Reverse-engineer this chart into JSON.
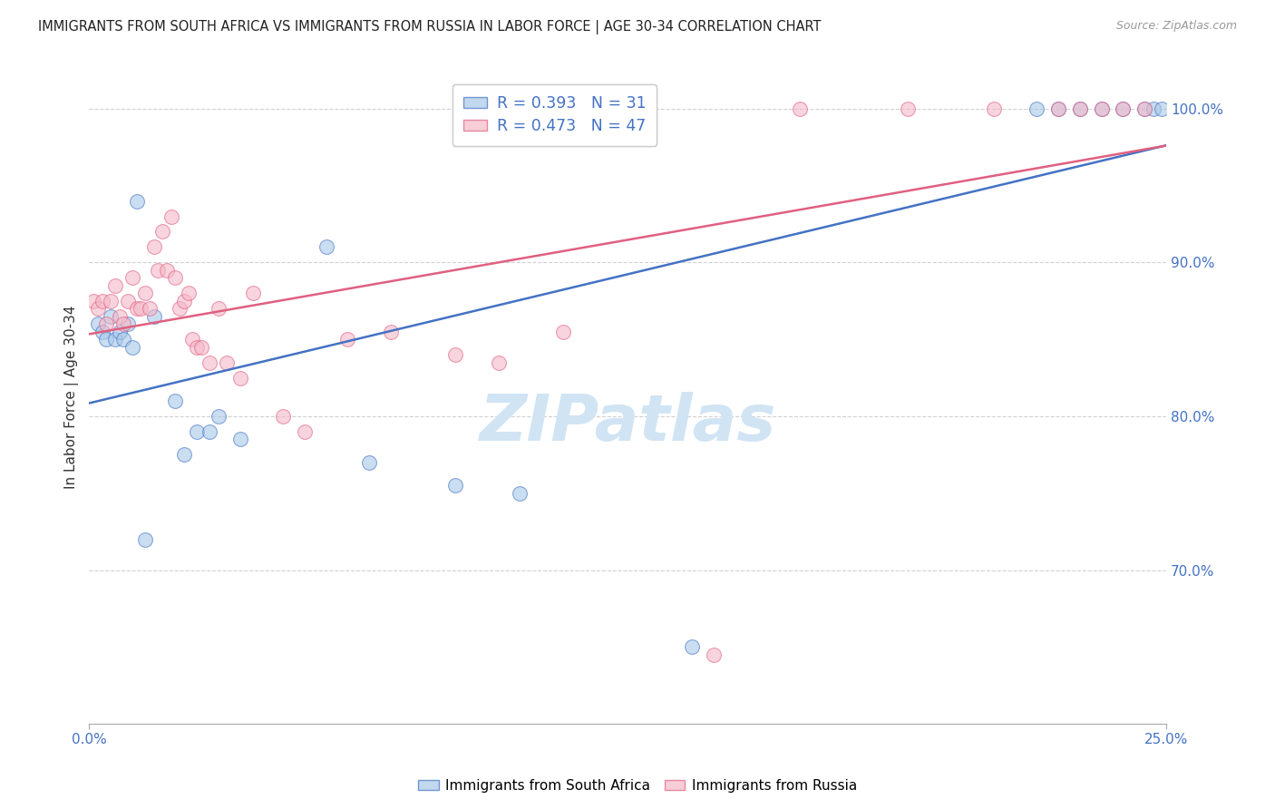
{
  "title": "IMMIGRANTS FROM SOUTH AFRICA VS IMMIGRANTS FROM RUSSIA IN LABOR FORCE | AGE 30-34 CORRELATION CHART",
  "source": "Source: ZipAtlas.com",
  "ylabel": "In Labor Force | Age 30-34",
  "blue_label": "Immigrants from South Africa",
  "pink_label": "Immigrants from Russia",
  "legend_blue_r": "R = 0.393",
  "legend_blue_n": "N = 31",
  "legend_pink_r": "R = 0.473",
  "legend_pink_n": "N = 47",
  "xmin": 0.0,
  "xmax": 25.0,
  "ymin": 60.0,
  "ymax": 102.5,
  "yticks": [
    70.0,
    80.0,
    90.0,
    100.0
  ],
  "ytick_labels": [
    "70.0%",
    "80.0%",
    "90.0%",
    "100.0%"
  ],
  "blue_color": "#a8c8e8",
  "pink_color": "#f4b8c8",
  "blue_edge_color": "#4472c4",
  "pink_edge_color": "#e06080",
  "line_color_blue": "#4472c4",
  "line_color_pink": "#e06080",
  "background_color": "#ffffff",
  "grid_color": "#cccccc",
  "axis_color": "#4472c4",
  "watermark_color": "#d0e4f4",
  "title_color": "#222222",
  "source_color": "#999999",
  "blue_scatter_x": [
    0.2,
    0.3,
    0.4,
    0.5,
    0.6,
    0.7,
    0.8,
    0.9,
    1.0,
    1.1,
    1.3,
    1.5,
    2.0,
    2.2,
    2.5,
    2.8,
    3.0,
    3.5,
    5.5,
    6.5,
    8.5,
    10.0,
    14.0,
    22.0,
    22.5,
    23.0,
    23.5,
    24.0,
    24.5,
    24.7,
    24.9
  ],
  "blue_scatter_y": [
    86.0,
    85.5,
    85.0,
    86.5,
    85.0,
    85.5,
    85.0,
    86.0,
    84.5,
    94.0,
    72.0,
    86.5,
    81.0,
    77.5,
    79.0,
    79.0,
    80.0,
    78.5,
    91.0,
    77.0,
    75.5,
    75.0,
    65.0,
    100.0,
    100.0,
    100.0,
    100.0,
    100.0,
    100.0,
    100.0,
    100.0
  ],
  "pink_scatter_x": [
    0.1,
    0.2,
    0.3,
    0.4,
    0.5,
    0.6,
    0.7,
    0.8,
    0.9,
    1.0,
    1.1,
    1.2,
    1.3,
    1.4,
    1.5,
    1.6,
    1.7,
    1.8,
    1.9,
    2.0,
    2.1,
    2.2,
    2.3,
    2.4,
    2.5,
    2.6,
    2.8,
    3.0,
    3.2,
    3.5,
    3.8,
    4.5,
    5.0,
    6.0,
    7.0,
    8.5,
    9.5,
    11.0,
    14.5,
    16.5,
    19.0,
    21.0,
    22.5,
    23.0,
    23.5,
    24.0,
    24.5
  ],
  "pink_scatter_y": [
    87.5,
    87.0,
    87.5,
    86.0,
    87.5,
    88.5,
    86.5,
    86.0,
    87.5,
    89.0,
    87.0,
    87.0,
    88.0,
    87.0,
    91.0,
    89.5,
    92.0,
    89.5,
    93.0,
    89.0,
    87.0,
    87.5,
    88.0,
    85.0,
    84.5,
    84.5,
    83.5,
    87.0,
    83.5,
    82.5,
    88.0,
    80.0,
    79.0,
    85.0,
    85.5,
    84.0,
    83.5,
    85.5,
    64.5,
    100.0,
    100.0,
    100.0,
    100.0,
    100.0,
    100.0,
    100.0,
    100.0
  ]
}
